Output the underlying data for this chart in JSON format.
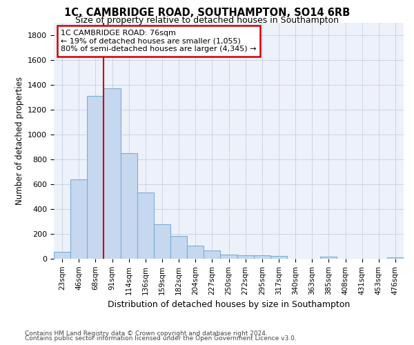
{
  "title1": "1C, CAMBRIDGE ROAD, SOUTHAMPTON, SO14 6RB",
  "title2": "Size of property relative to detached houses in Southampton",
  "xlabel": "Distribution of detached houses by size in Southampton",
  "ylabel": "Number of detached properties",
  "categories": [
    "23sqm",
    "46sqm",
    "68sqm",
    "91sqm",
    "114sqm",
    "136sqm",
    "159sqm",
    "182sqm",
    "204sqm",
    "227sqm",
    "250sqm",
    "272sqm",
    "295sqm",
    "317sqm",
    "340sqm",
    "363sqm",
    "385sqm",
    "408sqm",
    "431sqm",
    "453sqm",
    "476sqm"
  ],
  "values": [
    55,
    640,
    1310,
    1370,
    850,
    530,
    280,
    185,
    105,
    68,
    35,
    30,
    25,
    20,
    0,
    0,
    15,
    0,
    0,
    0,
    10
  ],
  "bar_color": "#c5d8f0",
  "bar_edge_color": "#7aadd4",
  "grid_color": "#c8cfe0",
  "annotation_line1": "1C CAMBRIDGE ROAD: 76sqm",
  "annotation_line2": "← 19% of detached houses are smaller (1,055)",
  "annotation_line3": "80% of semi-detached houses are larger (4,345) →",
  "annotation_box_edge_color": "#cc0000",
  "vline_color": "#cc0000",
  "vline_x_index": 2,
  "ylim": [
    0,
    1900
  ],
  "yticks": [
    0,
    200,
    400,
    600,
    800,
    1000,
    1200,
    1400,
    1600,
    1800
  ],
  "footer1": "Contains HM Land Registry data © Crown copyright and database right 2024.",
  "footer2": "Contains public sector information licensed under the Open Government Licence v3.0.",
  "bg_color": "#ffffff",
  "plot_bg_color": "#edf1fa"
}
